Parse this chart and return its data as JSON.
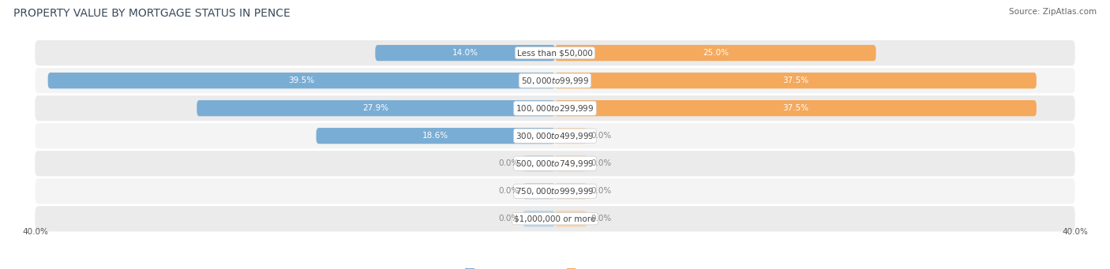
{
  "title": "PROPERTY VALUE BY MORTGAGE STATUS IN PENCE",
  "source": "Source: ZipAtlas.com",
  "categories": [
    "Less than $50,000",
    "$50,000 to $99,999",
    "$100,000 to $299,999",
    "$300,000 to $499,999",
    "$500,000 to $749,999",
    "$750,000 to $999,999",
    "$1,000,000 or more"
  ],
  "without_mortgage": [
    14.0,
    39.5,
    27.9,
    18.6,
    0.0,
    0.0,
    0.0
  ],
  "with_mortgage": [
    25.0,
    37.5,
    37.5,
    0.0,
    0.0,
    0.0,
    0.0
  ],
  "max_value": 40.0,
  "bar_color_without": "#7aadd4",
  "bar_color_without_light": "#b8d4ea",
  "bar_color_with": "#f5a95c",
  "bar_color_with_light": "#f9d4a8",
  "bg_color_row_light": "#ebebeb",
  "bg_color_row_lighter": "#f4f4f4",
  "title_color": "#3a4a5a",
  "title_fontsize": 10,
  "source_fontsize": 7.5,
  "label_fontsize": 7.5,
  "axis_label_fontsize": 7.5,
  "legend_fontsize": 8,
  "category_fontsize": 7.5,
  "stub_size": 2.5
}
